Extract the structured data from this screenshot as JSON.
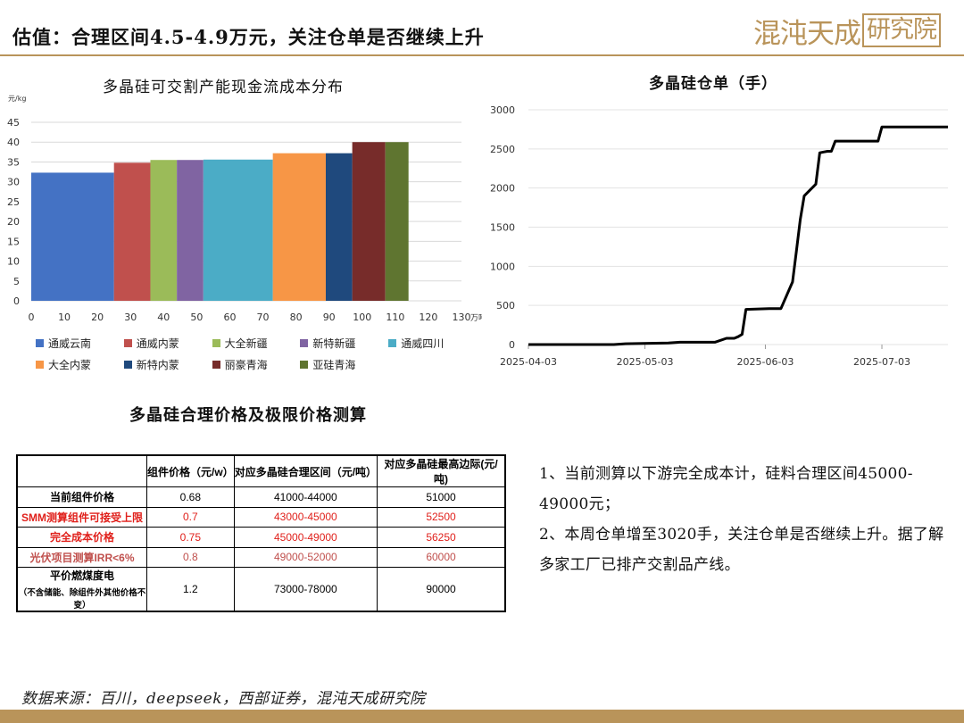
{
  "header": {
    "title": "估值：合理区间4.5-4.9万元，关注仓单是否继续上升",
    "logo_text": "混沌天成",
    "logo_box_text": "研究院",
    "accent_color": "#b9945a"
  },
  "chart_data": [
    {
      "type": "bar",
      "variable_width": true,
      "title": "多晶硅可交割产能现金流成本分布",
      "ylabel": "元/kg",
      "xlabel": "万吨",
      "ylim": [
        0,
        45
      ],
      "yticks": [
        0,
        5,
        10,
        15,
        20,
        25,
        30,
        35,
        40,
        45
      ],
      "xlim": [
        0,
        130
      ],
      "xticks": [
        0,
        10,
        20,
        30,
        40,
        50,
        60,
        70,
        80,
        90,
        100,
        110,
        120,
        130
      ],
      "grid": true,
      "legend_position": "bottom",
      "series": [
        {
          "name": "通威云南",
          "x_start": 0,
          "x_end": 25,
          "value": 32.3,
          "color": "#4472c4"
        },
        {
          "name": "通威内蒙",
          "x_start": 25,
          "x_end": 36,
          "value": 34.8,
          "color": "#c0504d"
        },
        {
          "name": "大全新疆",
          "x_start": 36,
          "x_end": 44,
          "value": 35.5,
          "color": "#9bbb59"
        },
        {
          "name": "新特新疆",
          "x_start": 44,
          "x_end": 52,
          "value": 35.5,
          "color": "#8064a2"
        },
        {
          "name": "通威四川",
          "x_start": 52,
          "x_end": 73,
          "value": 35.6,
          "color": "#4bacc6"
        },
        {
          "name": "大全内蒙",
          "x_start": 73,
          "x_end": 89,
          "value": 37.2,
          "color": "#f79646"
        },
        {
          "name": "新特内蒙",
          "x_start": 89,
          "x_end": 97,
          "value": 37.2,
          "color": "#1f497d"
        },
        {
          "name": "丽豪青海",
          "x_start": 97,
          "x_end": 107,
          "value": 40.0,
          "color": "#772c2a"
        },
        {
          "name": "亚硅青海",
          "x_start": 107,
          "x_end": 114,
          "value": 40.0,
          "color": "#5f7530"
        }
      ]
    },
    {
      "type": "line",
      "title": "多晶硅仓单（手）",
      "ylim": [
        0,
        3000
      ],
      "yticks": [
        0,
        500,
        1000,
        1500,
        2000,
        2500,
        3000
      ],
      "xlim": [
        "2025-04-03",
        "2025-07-20"
      ],
      "xticks": [
        "2025-04-03",
        "2025-05-03",
        "2025-06-03",
        "2025-07-03"
      ],
      "grid": true,
      "line_color": "#000000",
      "series": [
        {
          "x": [
            "2025-04-03",
            "2025-04-25",
            "2025-04-28",
            "2025-05-09",
            "2025-05-12",
            "2025-05-21",
            "2025-05-24",
            "2025-05-26",
            "2025-05-27",
            "2025-05-28",
            "2025-05-29",
            "2025-06-04",
            "2025-06-05",
            "2025-06-07",
            "2025-06-10",
            "2025-06-11",
            "2025-06-12",
            "2025-06-13",
            "2025-06-16",
            "2025-06-17",
            "2025-06-18",
            "2025-06-19",
            "2025-06-20",
            "2025-06-21",
            "2025-07-02",
            "2025-07-03",
            "2025-07-20"
          ],
          "y": [
            0,
            0,
            10,
            20,
            30,
            30,
            80,
            80,
            100,
            130,
            450,
            460,
            460,
            460,
            800,
            1200,
            1600,
            1900,
            2050,
            2450,
            2460,
            2470,
            2470,
            2600,
            2600,
            2780,
            2780
          ]
        }
      ]
    }
  ],
  "table": {
    "title": "多晶硅合理价格及极限价格测算",
    "headers": [
      "",
      "组件价格（元/w）",
      "对应多晶硅合理区间（元/吨）",
      "对应多晶硅最高边际(元/吨)"
    ],
    "rows": [
      {
        "label": "当前组件价格",
        "sublabel": "",
        "price": "0.68",
        "range": "41000-44000",
        "max": "51000",
        "color": "#000000"
      },
      {
        "label": "SMM测算组件可接受上限",
        "sublabel": "",
        "price": "0.7",
        "range": "43000-45000",
        "max": "52500",
        "color": "#e0201b"
      },
      {
        "label": "完全成本价格",
        "sublabel": "",
        "price": "0.75",
        "range": "45000-49000",
        "max": "56250",
        "color": "#e0201b"
      },
      {
        "label": "光伏项目测算IRR<6%",
        "sublabel": "",
        "price": "0.8",
        "range": "49000-52000",
        "max": "60000",
        "color": "#c0504d"
      },
      {
        "label": "平价燃煤度电",
        "sublabel": "（不含储能、除组件外其他价格不变）",
        "price": "1.2",
        "range": "73000-78000",
        "max": "90000",
        "color": "#000000"
      }
    ]
  },
  "notes": [
    "1、当前测算以下游完全成本计，硅料合理区间45000-49000元；",
    "2、本周仓单增至3020手，关注仓单是否继续上升。据了解多家工厂已排产交割品产线。"
  ],
  "source": "数据来源：百川，deepseek，西部证券，混沌天成研究院"
}
